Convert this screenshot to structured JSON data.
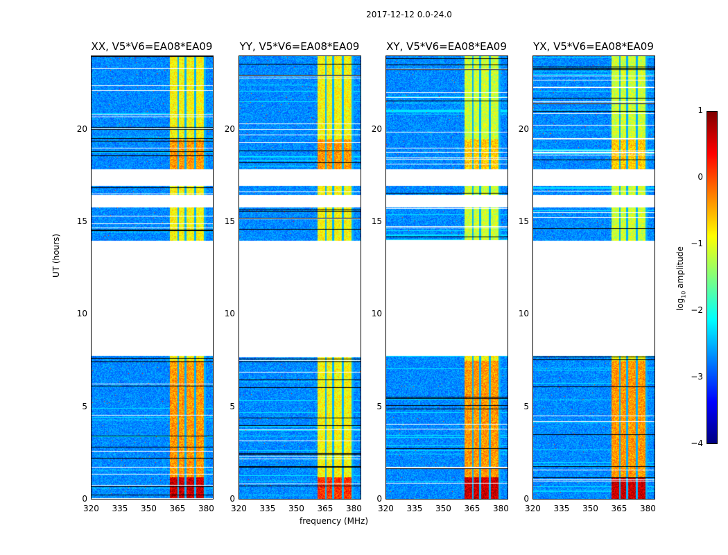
{
  "chart_data": {
    "type": "heatmap",
    "title": "2017-12-12 0.0-24.0",
    "xlabel": "frequency (MHz)",
    "ylabel": "UT (hours)",
    "xlim": [
      320,
      384
    ],
    "ylim": [
      0,
      24
    ],
    "xticks": [
      "320",
      "335",
      "350",
      "365",
      "380"
    ],
    "yticks": [
      "0",
      "5",
      "10",
      "15",
      "20"
    ],
    "panels": [
      {
        "title": "XX, V5*V6=EA08*EA09"
      },
      {
        "title": "YY, V5*V6=EA08*EA09"
      },
      {
        "title": "XY, V5*V6=EA08*EA09"
      },
      {
        "title": "YX, V5*V6=EA08*EA09"
      }
    ],
    "data_gaps_hours": [
      [
        7.75,
        14.0
      ],
      [
        15.8,
        16.5
      ],
      [
        17.0,
        17.9
      ]
    ],
    "bright_band_mhz": [
      361,
      380
    ],
    "colorbar": {
      "label_prefix": "log",
      "label_sub": "10",
      "label_suffix": " amplitude",
      "range": [
        -4,
        1
      ],
      "ticks": [
        "1",
        "0",
        "−1",
        "−2",
        "−3",
        "−4"
      ],
      "colormap": "jet"
    }
  }
}
